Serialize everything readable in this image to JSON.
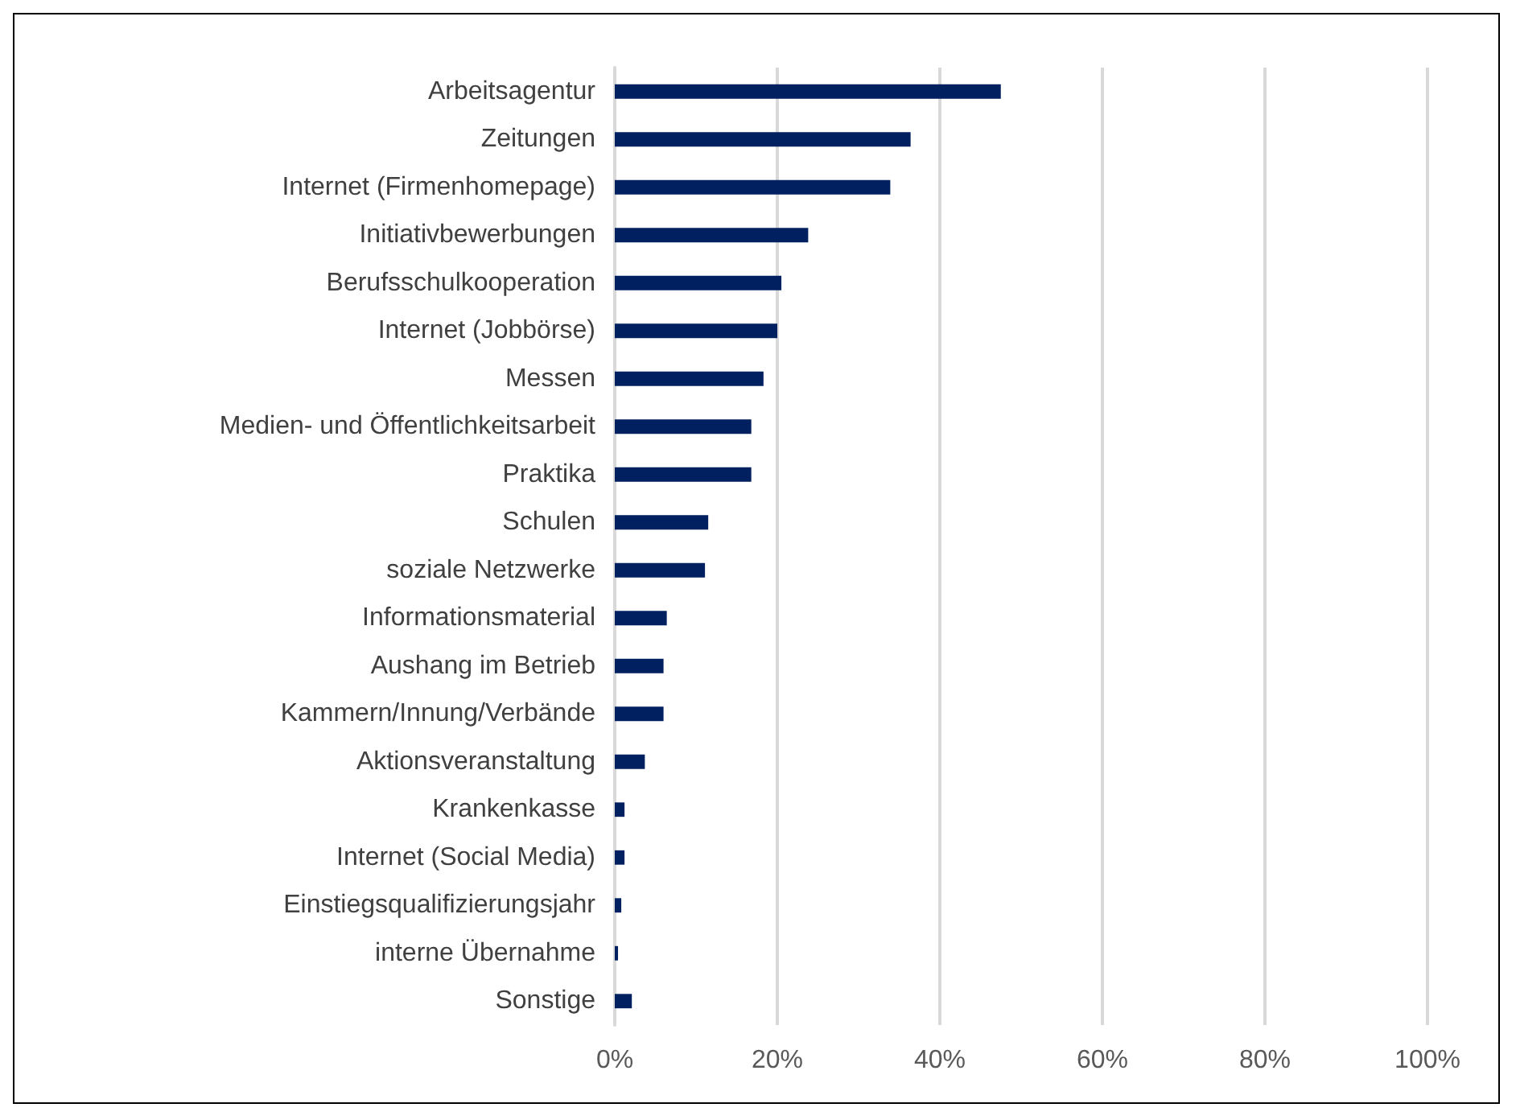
{
  "chart_data": {
    "type": "bar",
    "orientation": "horizontal",
    "categories": [
      "Arbeitsagentur",
      "Zeitungen",
      "Internet (Firmenhomepage)",
      "Initiativbewerbungen",
      "Berufsschulkooperation",
      "Internet (Jobbörse)",
      "Messen",
      "Medien- und Öffentlichkeitsarbeit",
      "Praktika",
      "Schulen",
      "soziale Netzwerke",
      "Informationsmaterial",
      "Aushang im Betrieb",
      "Kammern/Innung/Verbände",
      "Aktionsveranstaltung",
      "Krankenkasse",
      "Internet (Social Media)",
      "Einstiegsqualifizierungsjahr",
      "interne Übernahme",
      "Sonstige"
    ],
    "values": [
      47.5,
      36.4,
      33.9,
      23.8,
      20.5,
      20.0,
      18.3,
      16.8,
      16.8,
      11.5,
      11.1,
      6.4,
      6.0,
      6.0,
      3.7,
      1.2,
      1.2,
      0.8,
      0.4,
      2.1
    ],
    "color": "#002060",
    "xlim": [
      0,
      100
    ],
    "xticks": [
      {
        "value": 0,
        "label": "0%"
      },
      {
        "value": 20,
        "label": "20%"
      },
      {
        "value": 40,
        "label": "40%"
      },
      {
        "value": 60,
        "label": "60%"
      },
      {
        "value": 80,
        "label": "80%"
      },
      {
        "value": 100,
        "label": "100%"
      }
    ],
    "grid": "x"
  }
}
